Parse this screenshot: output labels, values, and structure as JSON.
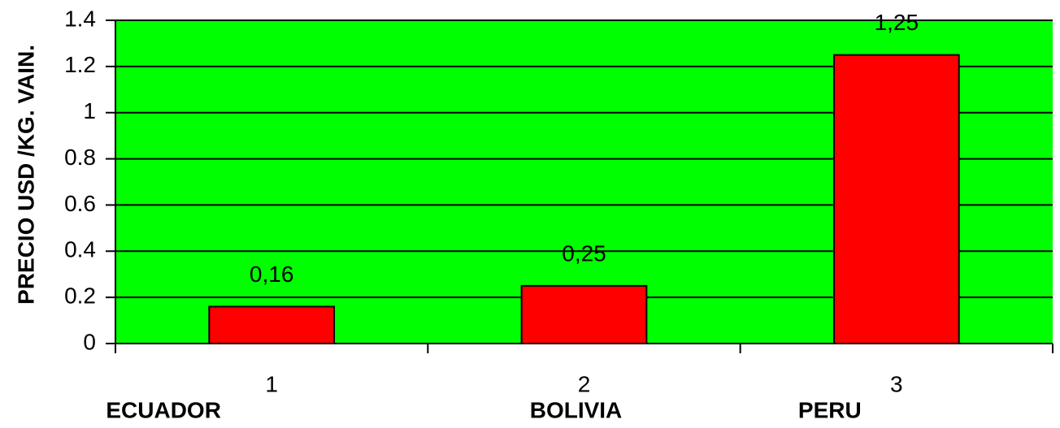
{
  "chart_data": {
    "type": "bar",
    "y_label": "PRECIO  USD /KG. VAIN.",
    "categories": [
      "1",
      "2",
      "3"
    ],
    "category_labels": [
      "ECUADOR",
      "BOLIVIA",
      "PERU"
    ],
    "values": [
      0.16,
      0.25,
      1.25
    ],
    "value_labels": [
      "0,16",
      "0,25",
      "1,25"
    ],
    "color": "#ff0000",
    "background": "#00ff00",
    "ylim": [
      0,
      1.4
    ],
    "yticks": [
      0,
      0.2,
      0.4,
      0.6,
      0.8,
      1,
      1.2,
      1.4
    ],
    "grid": true
  }
}
